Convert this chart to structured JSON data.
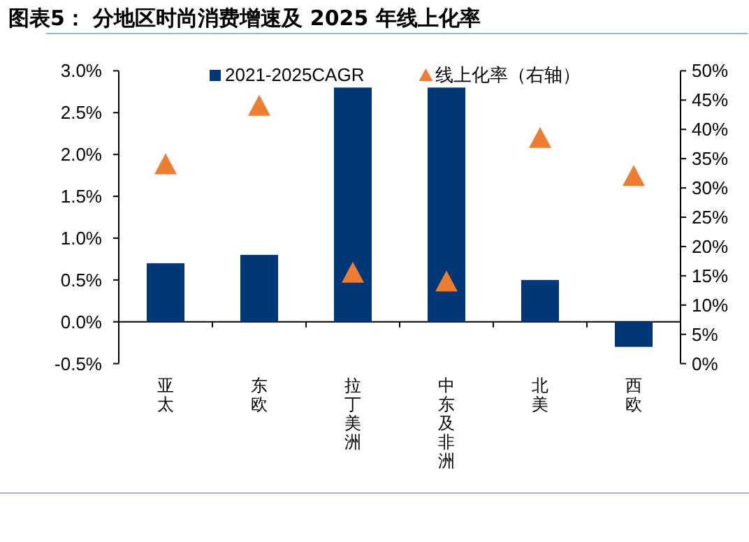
{
  "chart_data": {
    "type": "bar",
    "title": "图表5：  分地区时尚消费增速及 2025 年线上化率",
    "categories": [
      "亚太",
      "东欧",
      "拉丁美洲",
      "中东及非洲",
      "北美",
      "西欧"
    ],
    "series": [
      {
        "name": "2021-2025CAGR",
        "color": "#003777",
        "values": [
          0.7,
          0.8,
          2.8,
          2.8,
          0.5,
          -0.3
        ]
      },
      {
        "name": "线上化率（右轴）",
        "type": "scatter",
        "axis": "y2",
        "marker": "triangle",
        "color": "#ed7d31",
        "values": [
          34,
          44,
          15.5,
          14,
          38.5,
          32
        ]
      }
    ],
    "ylim": [
      -0.5,
      3.0
    ],
    "yticks": [
      {
        "value": -0.5,
        "label": "-0.5%"
      },
      {
        "value": 0,
        "label": "0.0%"
      },
      {
        "value": 0.5,
        "label": "0.5%"
      },
      {
        "value": 1.0,
        "label": "1.0%"
      },
      {
        "value": 1.5,
        "label": "1.5%"
      },
      {
        "value": 2.0,
        "label": "2.0%"
      },
      {
        "value": 2.5,
        "label": "2.5%"
      },
      {
        "value": 3.0,
        "label": "3.0%"
      }
    ],
    "y2lim": [
      0,
      50
    ],
    "y2ticks": [
      {
        "value": 0,
        "label": "0%"
      },
      {
        "value": 5,
        "label": "5%"
      },
      {
        "value": 10,
        "label": "10%"
      },
      {
        "value": 15,
        "label": "15%"
      },
      {
        "value": 20,
        "label": "20%"
      },
      {
        "value": 25,
        "label": "25%"
      },
      {
        "value": 30,
        "label": "30%"
      },
      {
        "value": 35,
        "label": "35%"
      },
      {
        "value": 40,
        "label": "40%"
      },
      {
        "value": 45,
        "label": "45%"
      },
      {
        "value": 50,
        "label": "50%"
      }
    ],
    "legend": "top"
  }
}
